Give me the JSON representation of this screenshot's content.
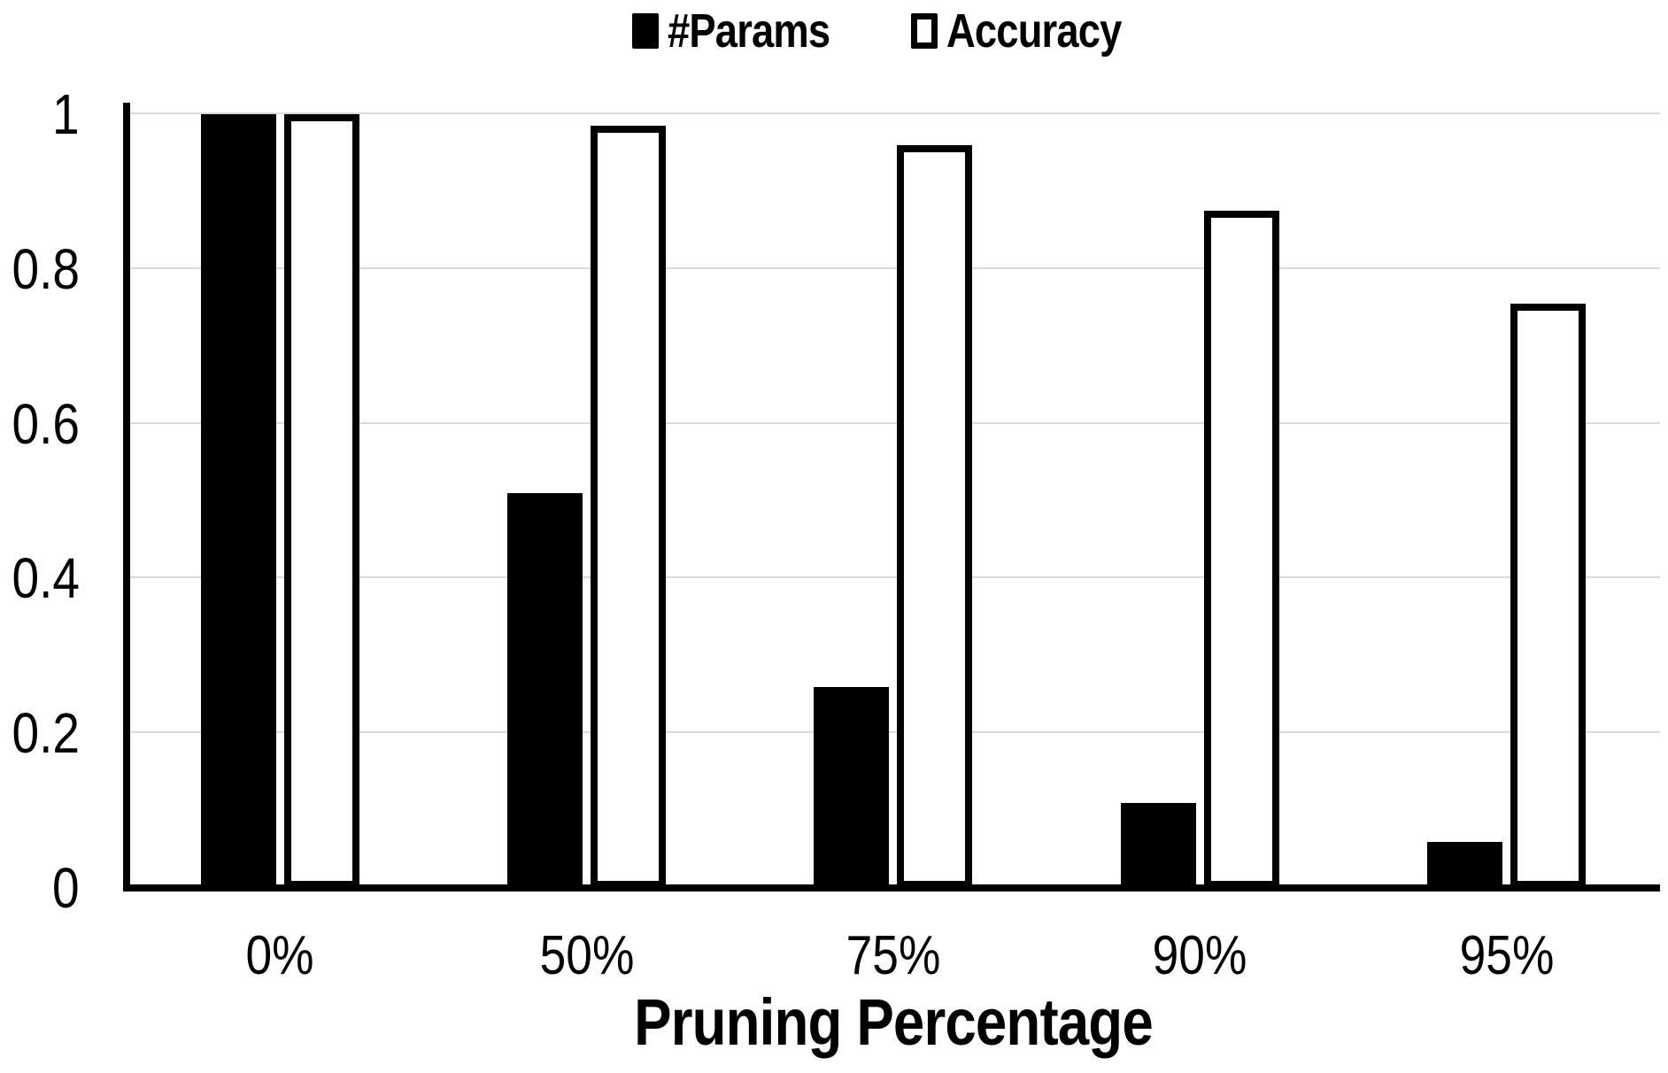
{
  "figure": {
    "background": "#ffffff",
    "axis_color": "#000000",
    "gridline_color": "#d9d9d9",
    "text_color": "#000000"
  },
  "chart_data": {
    "type": "bar",
    "title": "",
    "xlabel": "Pruning Percentage",
    "ylabel": "",
    "categories": [
      "0%",
      "50%",
      "75%",
      "90%",
      "95%"
    ],
    "series": [
      {
        "name": "#Params",
        "style": "filled",
        "fill": "#000000",
        "values": [
          1.0,
          0.51,
          0.26,
          0.11,
          0.06
        ]
      },
      {
        "name": "Accuracy",
        "style": "outlined",
        "fill": "#ffffff",
        "values": [
          1.0,
          0.985,
          0.96,
          0.875,
          0.755
        ]
      }
    ],
    "ylim": [
      0,
      1
    ],
    "yticks": [
      0,
      0.2,
      0.4,
      0.6,
      0.8,
      1
    ],
    "ytick_labels": [
      "0",
      "0.2",
      "0.4",
      "0.6",
      "0.8",
      "1"
    ],
    "grid": true,
    "legend_position": "top-center"
  }
}
